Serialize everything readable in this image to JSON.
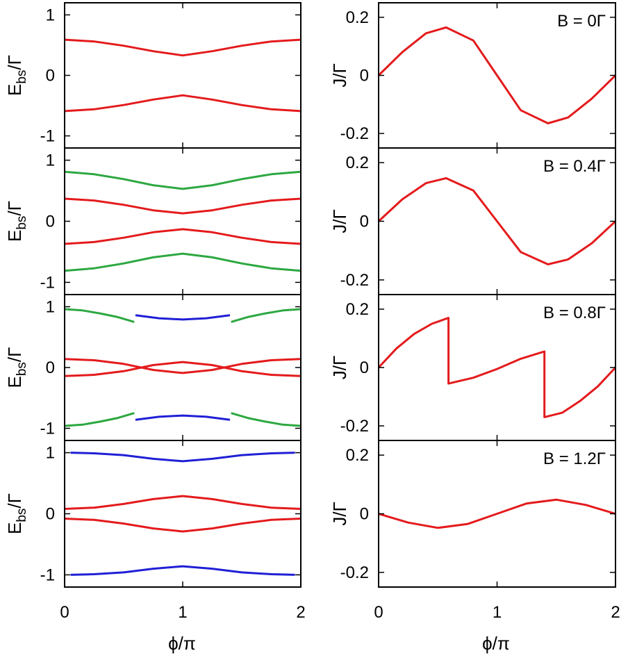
{
  "figure": {
    "xlabel": "ϕ/π",
    "colors": {
      "red": "#e41a1c",
      "green": "#2ca840",
      "blue": "#1f1fd6"
    }
  },
  "chart_data": [
    {
      "id": "E_B0",
      "type": "line",
      "ylabel_main": "E",
      "ylabel_sub": "bs",
      "ylabel_tail": "/Γ",
      "xlim": [
        0,
        2
      ],
      "ylim": [
        -1.2,
        1.2
      ],
      "xticks": [
        0,
        1,
        2
      ],
      "xtick_labels": [
        "0",
        "1",
        "2"
      ],
      "yticks": [
        -1,
        0,
        1
      ],
      "ytick_labels": [
        "-1",
        "0",
        "1"
      ],
      "series": [
        {
          "name": "E+ (upper)",
          "color": "red",
          "x": [
            0,
            0.25,
            0.5,
            0.75,
            1.0,
            1.25,
            1.5,
            1.75,
            2.0
          ],
          "y": [
            0.59,
            0.56,
            0.49,
            0.4,
            0.33,
            0.4,
            0.49,
            0.56,
            0.59
          ]
        },
        {
          "name": "E- (lower)",
          "color": "red",
          "x": [
            0,
            0.25,
            0.5,
            0.75,
            1.0,
            1.25,
            1.5,
            1.75,
            2.0
          ],
          "y": [
            -0.59,
            -0.56,
            -0.49,
            -0.4,
            -0.33,
            -0.4,
            -0.49,
            -0.56,
            -0.59
          ]
        }
      ]
    },
    {
      "id": "J_B0",
      "type": "line",
      "ylabel": "J/Γ",
      "annotation": "B = 0Γ",
      "xlim": [
        0,
        2
      ],
      "ylim": [
        -0.25,
        0.25
      ],
      "xticks": [
        0,
        1,
        2
      ],
      "xtick_labels": [
        "0",
        "1",
        "2"
      ],
      "yticks": [
        -0.2,
        0,
        0.2
      ],
      "ytick_labels": [
        "-0.2",
        "0",
        "0.2"
      ],
      "series": [
        {
          "name": "J",
          "color": "red",
          "x": [
            0,
            0.2,
            0.4,
            0.57,
            0.8,
            1.0,
            1.2,
            1.43,
            1.6,
            1.8,
            2.0
          ],
          "y": [
            0,
            0.08,
            0.145,
            0.165,
            0.12,
            0,
            -0.12,
            -0.165,
            -0.145,
            -0.08,
            0
          ]
        }
      ]
    },
    {
      "id": "E_B04",
      "type": "line",
      "ylabel_main": "E",
      "ylabel_sub": "bs",
      "ylabel_tail": "/Γ",
      "xlim": [
        0,
        2
      ],
      "ylim": [
        -1.2,
        1.2
      ],
      "xticks": [
        0,
        1,
        2
      ],
      "xtick_labels": [
        "0",
        "1",
        "2"
      ],
      "yticks": [
        -1,
        0,
        1
      ],
      "ytick_labels": [
        "-1",
        "0",
        "1"
      ],
      "series": [
        {
          "name": "outer upper",
          "color": "green",
          "x": [
            0,
            0.25,
            0.5,
            0.75,
            1.0,
            1.25,
            1.5,
            1.75,
            2.0
          ],
          "y": [
            0.81,
            0.77,
            0.69,
            0.59,
            0.53,
            0.59,
            0.69,
            0.77,
            0.81
          ]
        },
        {
          "name": "inner upper",
          "color": "red",
          "x": [
            0,
            0.25,
            0.5,
            0.75,
            1.0,
            1.25,
            1.5,
            1.75,
            2.0
          ],
          "y": [
            0.37,
            0.34,
            0.27,
            0.18,
            0.13,
            0.18,
            0.27,
            0.34,
            0.37
          ]
        },
        {
          "name": "inner lower",
          "color": "red",
          "x": [
            0,
            0.25,
            0.5,
            0.75,
            1.0,
            1.25,
            1.5,
            1.75,
            2.0
          ],
          "y": [
            -0.37,
            -0.34,
            -0.27,
            -0.18,
            -0.13,
            -0.18,
            -0.27,
            -0.34,
            -0.37
          ]
        },
        {
          "name": "outer lower",
          "color": "green",
          "x": [
            0,
            0.25,
            0.5,
            0.75,
            1.0,
            1.25,
            1.5,
            1.75,
            2.0
          ],
          "y": [
            -0.81,
            -0.77,
            -0.69,
            -0.59,
            -0.53,
            -0.59,
            -0.69,
            -0.77,
            -0.81
          ]
        }
      ]
    },
    {
      "id": "J_B04",
      "type": "line",
      "ylabel": "J/Γ",
      "annotation": "B = 0.4Γ",
      "xlim": [
        0,
        2
      ],
      "ylim": [
        -0.25,
        0.25
      ],
      "xticks": [
        0,
        1,
        2
      ],
      "xtick_labels": [
        "0",
        "1",
        "2"
      ],
      "yticks": [
        -0.2,
        0,
        0.2
      ],
      "ytick_labels": [
        "-0.2",
        "0",
        "0.2"
      ],
      "series": [
        {
          "name": "J",
          "color": "red",
          "x": [
            0,
            0.2,
            0.4,
            0.57,
            0.8,
            1.0,
            1.2,
            1.43,
            1.6,
            1.8,
            2.0
          ],
          "y": [
            0,
            0.075,
            0.13,
            0.147,
            0.105,
            0,
            -0.105,
            -0.147,
            -0.13,
            -0.075,
            0
          ]
        }
      ]
    },
    {
      "id": "E_B08",
      "type": "line",
      "ylabel_main": "E",
      "ylabel_sub": "bs",
      "ylabel_tail": "/Γ",
      "xlim": [
        0,
        2
      ],
      "ylim": [
        -1.2,
        1.2
      ],
      "xticks": [
        0,
        1,
        2
      ],
      "xtick_labels": [
        "0",
        "1",
        "2"
      ],
      "yticks": [
        -1,
        0,
        1
      ],
      "ytick_labels": [
        "-1",
        "0",
        "1"
      ],
      "series": [
        {
          "name": "green upper left",
          "color": "green",
          "x": [
            0,
            0.15,
            0.3,
            0.45,
            0.59
          ],
          "y": [
            0.96,
            0.94,
            0.89,
            0.83,
            0.75
          ]
        },
        {
          "name": "blue upper",
          "color": "blue",
          "x": [
            0.6,
            0.8,
            1.0,
            1.2,
            1.4
          ],
          "y": [
            0.86,
            0.81,
            0.79,
            0.81,
            0.86
          ]
        },
        {
          "name": "green upper right",
          "color": "green",
          "x": [
            1.41,
            1.55,
            1.7,
            1.85,
            2.0
          ],
          "y": [
            0.75,
            0.83,
            0.89,
            0.94,
            0.96
          ]
        },
        {
          "name": "red cross 1",
          "color": "red",
          "x": [
            0,
            0.25,
            0.5,
            0.75,
            1.0,
            1.25,
            1.5,
            1.75,
            2.0
          ],
          "y": [
            0.14,
            0.12,
            0.06,
            -0.04,
            -0.09,
            -0.04,
            0.06,
            0.12,
            0.14
          ]
        },
        {
          "name": "red cross 2",
          "color": "red",
          "x": [
            0,
            0.25,
            0.5,
            0.75,
            1.0,
            1.25,
            1.5,
            1.75,
            2.0
          ],
          "y": [
            -0.14,
            -0.12,
            -0.06,
            0.04,
            0.09,
            0.04,
            -0.06,
            -0.12,
            -0.14
          ]
        },
        {
          "name": "green lower left",
          "color": "green",
          "x": [
            0,
            0.15,
            0.3,
            0.45,
            0.59
          ],
          "y": [
            -0.96,
            -0.94,
            -0.89,
            -0.83,
            -0.75
          ]
        },
        {
          "name": "blue lower",
          "color": "blue",
          "x": [
            0.6,
            0.8,
            1.0,
            1.2,
            1.4
          ],
          "y": [
            -0.86,
            -0.81,
            -0.79,
            -0.81,
            -0.86
          ]
        },
        {
          "name": "green lower right",
          "color": "green",
          "x": [
            1.41,
            1.55,
            1.7,
            1.85,
            2.0
          ],
          "y": [
            -0.75,
            -0.83,
            -0.89,
            -0.94,
            -0.96
          ]
        }
      ]
    },
    {
      "id": "J_B08",
      "type": "line",
      "ylabel": "J/Γ",
      "annotation": "B = 0.8Γ",
      "xlim": [
        0,
        2
      ],
      "ylim": [
        -0.25,
        0.25
      ],
      "xticks": [
        0,
        1,
        2
      ],
      "xtick_labels": [
        "0",
        "1",
        "2"
      ],
      "yticks": [
        -0.2,
        0,
        0.2
      ],
      "ytick_labels": [
        "-0.2",
        "0",
        "0.2"
      ],
      "series": [
        {
          "name": "J",
          "color": "red",
          "x": [
            0,
            0.15,
            0.3,
            0.45,
            0.59,
            0.59,
            0.8,
            1.0,
            1.2,
            1.4,
            1.4,
            1.55,
            1.7,
            1.85,
            2.0
          ],
          "y": [
            0,
            0.065,
            0.115,
            0.15,
            0.17,
            -0.055,
            -0.035,
            -0.005,
            0.03,
            0.055,
            -0.17,
            -0.155,
            -0.115,
            -0.065,
            0
          ]
        }
      ]
    },
    {
      "id": "E_B12",
      "type": "line",
      "ylabel_main": "E",
      "ylabel_sub": "bs",
      "ylabel_tail": "/Γ",
      "xlim": [
        0,
        2
      ],
      "ylim": [
        -1.2,
        1.2
      ],
      "xticks": [
        0,
        1,
        2
      ],
      "xtick_labels": [
        "0",
        "1",
        "2"
      ],
      "yticks": [
        -1,
        0,
        1
      ],
      "ytick_labels": [
        "-1",
        "0",
        "1"
      ],
      "series": [
        {
          "name": "blue upper",
          "color": "blue",
          "x": [
            0.05,
            0.25,
            0.5,
            0.75,
            1.0,
            1.25,
            1.5,
            1.75,
            1.95
          ],
          "y": [
            1.0,
            0.99,
            0.96,
            0.9,
            0.86,
            0.9,
            0.96,
            0.99,
            1.0
          ]
        },
        {
          "name": "red upper",
          "color": "red",
          "x": [
            0,
            0.25,
            0.5,
            0.75,
            1.0,
            1.25,
            1.5,
            1.75,
            2.0
          ],
          "y": [
            0.08,
            0.1,
            0.16,
            0.24,
            0.29,
            0.24,
            0.16,
            0.1,
            0.08
          ]
        },
        {
          "name": "red lower",
          "color": "red",
          "x": [
            0,
            0.25,
            0.5,
            0.75,
            1.0,
            1.25,
            1.5,
            1.75,
            2.0
          ],
          "y": [
            -0.08,
            -0.1,
            -0.16,
            -0.24,
            -0.29,
            -0.24,
            -0.16,
            -0.1,
            -0.08
          ]
        },
        {
          "name": "blue lower",
          "color": "blue",
          "x": [
            0.05,
            0.25,
            0.5,
            0.75,
            1.0,
            1.25,
            1.5,
            1.75,
            1.95
          ],
          "y": [
            -1.0,
            -0.99,
            -0.96,
            -0.9,
            -0.86,
            -0.9,
            -0.96,
            -0.99,
            -1.0
          ]
        }
      ]
    },
    {
      "id": "J_B12",
      "type": "line",
      "ylabel": "J/Γ",
      "annotation": "B = 1.2Γ",
      "xlim": [
        0,
        2
      ],
      "ylim": [
        -0.25,
        0.25
      ],
      "xticks": [
        0,
        1,
        2
      ],
      "xtick_labels": [
        "0",
        "1",
        "2"
      ],
      "yticks": [
        -0.2,
        0,
        0.2
      ],
      "ytick_labels": [
        "-0.2",
        "0",
        "0.2"
      ],
      "series": [
        {
          "name": "J",
          "color": "red",
          "x": [
            0,
            0.25,
            0.5,
            0.75,
            1.0,
            1.25,
            1.5,
            1.75,
            2.0
          ],
          "y": [
            0,
            -0.03,
            -0.048,
            -0.035,
            0,
            0.035,
            0.048,
            0.03,
            0
          ]
        }
      ]
    }
  ]
}
